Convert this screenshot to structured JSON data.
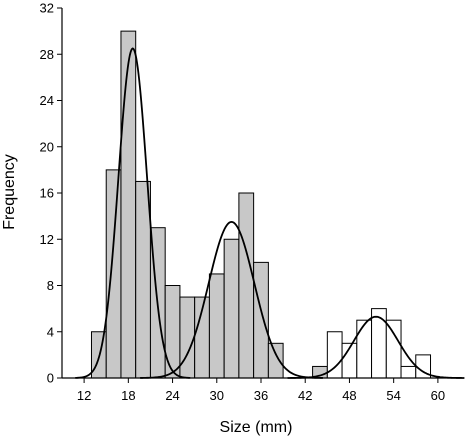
{
  "chart_data": {
    "type": "bar",
    "xlabel": "Size (mm)",
    "ylabel": "Frequency",
    "xlim": [
      9,
      63
    ],
    "ylim": [
      0,
      32
    ],
    "x_ticks": [
      12,
      18,
      24,
      30,
      36,
      42,
      48,
      54,
      60
    ],
    "y_ticks": [
      0,
      4,
      8,
      12,
      16,
      20,
      24,
      28,
      32
    ],
    "bin_width": 2,
    "colors": {
      "shaded": "#c8c8c8",
      "open": "#ffffff",
      "line": "#000000"
    },
    "series": [
      {
        "fill": "shaded",
        "bins": [
          {
            "start": 13,
            "value": 4
          },
          {
            "start": 15,
            "value": 18
          },
          {
            "start": 17,
            "value": 30
          },
          {
            "start": 19,
            "value": 17
          },
          {
            "start": 21,
            "value": 13
          },
          {
            "start": 23,
            "value": 8
          },
          {
            "start": 25,
            "value": 7
          },
          {
            "start": 27,
            "value": 7
          },
          {
            "start": 29,
            "value": 9
          },
          {
            "start": 31,
            "value": 12
          },
          {
            "start": 33,
            "value": 16
          },
          {
            "start": 35,
            "value": 10
          },
          {
            "start": 37,
            "value": 3
          },
          {
            "start": 41,
            "value": 0
          },
          {
            "start": 43,
            "value": 1
          }
        ]
      },
      {
        "fill": "open",
        "bins": [
          {
            "start": 45,
            "value": 4
          },
          {
            "start": 47,
            "value": 3
          },
          {
            "start": 49,
            "value": 5
          },
          {
            "start": 51,
            "value": 6
          },
          {
            "start": 53,
            "value": 5
          },
          {
            "start": 55,
            "value": 1
          },
          {
            "start": 57,
            "value": 2
          }
        ]
      }
    ],
    "fitted_curves": [
      {
        "mean": 18.6,
        "sd": 1.95,
        "peak": 28.5
      },
      {
        "mean": 32.0,
        "sd": 3.1,
        "peak": 13.5
      },
      {
        "mean": 51.6,
        "sd": 3.0,
        "peak": 5.3
      }
    ]
  }
}
